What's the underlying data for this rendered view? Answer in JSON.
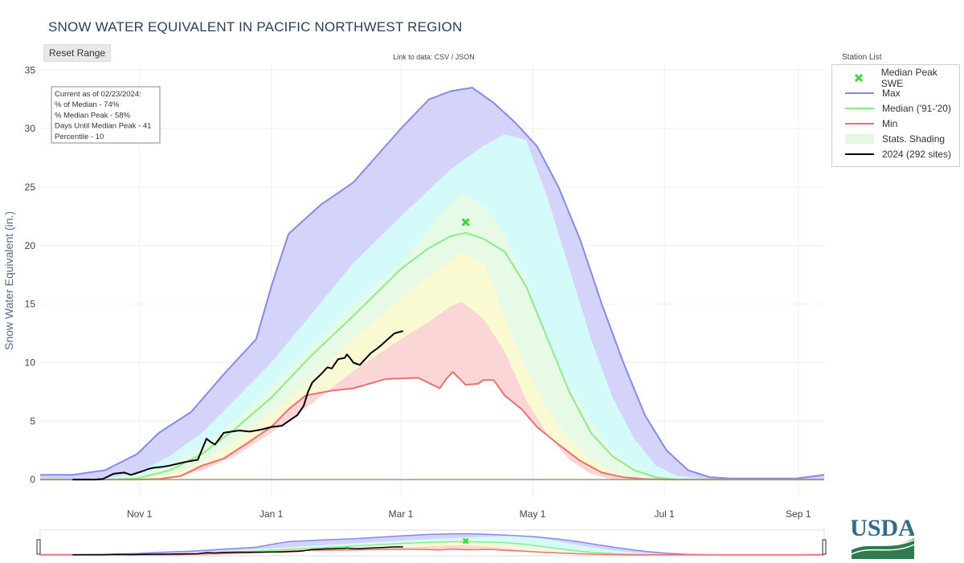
{
  "title": "SNOW WATER EQUIVALENT IN PACIFIC NORTHWEST REGION",
  "reset_label": "Reset Range",
  "link_text": "Link to data: CSV / JSON",
  "station_list_label": "Station List",
  "logo_text": "USDA",
  "info_box": [
    "Current as of 02/23/2024:",
    "% of Median - 74%",
    "% Median Peak - 58%",
    "Days Until Median Peak - 41",
    "Percentile - 10"
  ],
  "legend": [
    {
      "label": "Median Peak SWE",
      "color": "#33dd33",
      "kind": "x"
    },
    {
      "label": "Max",
      "color": "#8080ee",
      "kind": "line"
    },
    {
      "label": "Median ('91-'20)",
      "color": "#80ee80",
      "kind": "line"
    },
    {
      "label": "Min",
      "color": "#ee7070",
      "kind": "line"
    },
    {
      "label": "Stats. Shading",
      "color": "#e8f8e4",
      "kind": "band"
    },
    {
      "label": "2024 (292 sites)",
      "color": "#000000",
      "kind": "line"
    }
  ],
  "colors": {
    "max_band": "#d4d4fa",
    "p90_band": "#d4fafa",
    "p70_band": "#e6fae6",
    "p30_band": "#fafad2",
    "p10_band": "#fad6d6",
    "max_line": "#8888ee",
    "median_line": "#88ee88",
    "min_line": "#ee7070",
    "current_line": "#000000",
    "peak_marker": "#33dd33",
    "grid": "#eeeeee",
    "axis_text": "#444444"
  },
  "chart_data": {
    "type": "area",
    "title": "SNOW WATER EQUIVALENT IN PACIFIC NORTHWEST REGION",
    "ylabel": "Snow Water Equivalent (in.)",
    "xlabel": "",
    "x_unit": "days since Oct 1",
    "xlim": [
      -15,
      348
    ],
    "ylim": [
      -1.5,
      35.5
    ],
    "yticks": [
      0,
      5,
      10,
      15,
      20,
      25,
      30,
      35
    ],
    "xticks": [
      {
        "label": "Nov 1",
        "day": 31
      },
      {
        "label": "Jan 1",
        "day": 92
      },
      {
        "label": "Mar 1",
        "day": 152
      },
      {
        "label": "May 1",
        "day": 213
      },
      {
        "label": "Jul 1",
        "day": 274
      },
      {
        "label": "Sep 1",
        "day": 336
      }
    ],
    "series": [
      {
        "name": "Max",
        "x": [
          -15,
          0,
          15,
          30,
          40,
          55,
          70,
          85,
          92,
          100,
          115,
          130,
          152,
          165,
          175,
          185,
          195,
          205,
          215,
          225,
          235,
          245,
          255,
          265,
          275,
          285,
          295,
          305,
          320,
          335,
          348
        ],
        "y": [
          0.4,
          0.4,
          0.8,
          2.2,
          4.0,
          5.8,
          9.0,
          12.0,
          16.5,
          21.0,
          23.5,
          25.4,
          30.0,
          32.5,
          33.2,
          33.5,
          32.2,
          30.5,
          28.5,
          25.0,
          20.5,
          15.0,
          10.0,
          5.5,
          2.5,
          0.8,
          0.2,
          0.1,
          0.1,
          0.1,
          0.4
        ]
      },
      {
        "name": "90th",
        "x": [
          -15,
          0,
          15,
          30,
          45,
          60,
          75,
          92,
          110,
          130,
          152,
          175,
          190,
          200,
          210,
          220,
          230,
          240,
          250,
          260,
          270,
          280,
          290,
          300,
          348
        ],
        "y": [
          0,
          0,
          0.1,
          0.6,
          2.0,
          4.0,
          6.8,
          10.0,
          14.0,
          18.5,
          22.5,
          26.5,
          28.5,
          29.5,
          29.0,
          24.0,
          18.0,
          12.0,
          7.0,
          3.5,
          1.2,
          0.3,
          0.1,
          0,
          0
        ]
      },
      {
        "name": "70th",
        "x": [
          -15,
          0,
          15,
          30,
          45,
          60,
          75,
          92,
          110,
          130,
          152,
          170,
          180,
          190,
          200,
          210,
          220,
          230,
          240,
          250,
          260,
          270,
          280,
          348
        ],
        "y": [
          0,
          0,
          0,
          0.3,
          1.3,
          2.8,
          5.0,
          7.8,
          11.2,
          14.8,
          18.5,
          22.5,
          24.5,
          23.5,
          21.0,
          17.0,
          12.0,
          8.0,
          4.8,
          2.5,
          1.0,
          0.2,
          0,
          0
        ]
      },
      {
        "name": "Median ('91-'20)",
        "x": [
          -15,
          0,
          15,
          30,
          45,
          60,
          75,
          92,
          110,
          130,
          152,
          165,
          175,
          182,
          190,
          200,
          210,
          220,
          230,
          240,
          250,
          260,
          270,
          280,
          348
        ],
        "y": [
          0,
          0,
          0,
          0.1,
          0.8,
          2.2,
          4.3,
          7.0,
          10.5,
          14.0,
          18.0,
          19.8,
          20.8,
          21.1,
          20.6,
          19.5,
          16.5,
          12.0,
          7.5,
          4.0,
          2.0,
          0.8,
          0.2,
          0,
          0
        ]
      },
      {
        "name": "30th",
        "x": [
          -15,
          0,
          15,
          30,
          45,
          60,
          75,
          92,
          110,
          130,
          152,
          170,
          180,
          190,
          195,
          200,
          210,
          220,
          230,
          240,
          250,
          260,
          348
        ],
        "y": [
          0,
          0,
          0,
          0,
          0.4,
          1.5,
          3.2,
          5.6,
          8.5,
          12.0,
          15.5,
          18.0,
          19.5,
          18.5,
          16.5,
          14.0,
          9.5,
          6.0,
          3.5,
          1.7,
          0.6,
          0.1,
          0
        ]
      },
      {
        "name": "10th",
        "x": [
          -15,
          0,
          15,
          30,
          45,
          60,
          75,
          92,
          110,
          130,
          152,
          165,
          175,
          180,
          185,
          190,
          200,
          210,
          220,
          230,
          240,
          250,
          348
        ],
        "y": [
          0,
          0,
          0,
          0,
          0.1,
          0.8,
          2.0,
          4.0,
          6.4,
          9.3,
          12.0,
          13.5,
          14.8,
          15.2,
          14.5,
          13.8,
          11.0,
          6.8,
          3.8,
          1.7,
          0.5,
          0,
          0
        ]
      },
      {
        "name": "Min",
        "x": [
          -15,
          0,
          15,
          30,
          40,
          50,
          60,
          70,
          80,
          92,
          100,
          108,
          120,
          130,
          145,
          160,
          170,
          173,
          176,
          182,
          188,
          190,
          195,
          200,
          208,
          215,
          225,
          235,
          245,
          255,
          265,
          275,
          348
        ],
        "y": [
          0,
          0,
          0,
          0,
          0.05,
          0.3,
          1.2,
          1.8,
          3.0,
          4.5,
          6.0,
          7.2,
          7.6,
          7.8,
          8.6,
          8.7,
          7.8,
          8.6,
          9.2,
          8.1,
          8.2,
          8.5,
          8.5,
          7.2,
          6.0,
          4.5,
          3.0,
          1.6,
          0.6,
          0.2,
          0.05,
          0,
          0
        ]
      },
      {
        "name": "2024 (292 sites)",
        "x": [
          0,
          10,
          14,
          19,
          24,
          27,
          32,
          35,
          37,
          42,
          45,
          52,
          58,
          60,
          62,
          64,
          66,
          70,
          77,
          82,
          85,
          88,
          92,
          97,
          100,
          104,
          107,
          109,
          111,
          115,
          118,
          120,
          123,
          126,
          127,
          128,
          130,
          133,
          135,
          138,
          141,
          143,
          146,
          149,
          153
        ],
        "y": [
          0,
          0,
          0.05,
          0.5,
          0.6,
          0.4,
          0.7,
          0.9,
          1.0,
          1.1,
          1.2,
          1.5,
          1.7,
          2.6,
          3.5,
          3.2,
          3.0,
          4.0,
          4.2,
          4.1,
          4.2,
          4.3,
          4.5,
          4.6,
          5.0,
          5.5,
          6.3,
          7.5,
          8.3,
          9.0,
          9.6,
          9.5,
          10.3,
          10.4,
          10.7,
          10.5,
          10.0,
          9.8,
          10.2,
          10.8,
          11.2,
          11.5,
          12.0,
          12.5,
          12.7
        ]
      }
    ],
    "median_peak": {
      "day": 182,
      "swe": 22.0
    }
  }
}
